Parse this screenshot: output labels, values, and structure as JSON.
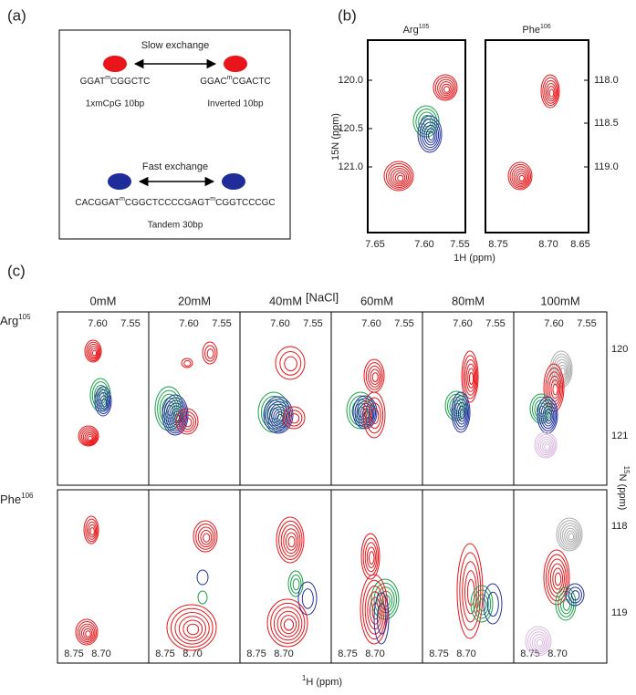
{
  "panel_a": {
    "label": "(a)",
    "slow_exchange": "Slow exchange",
    "fast_exchange": "Fast exchange",
    "seq_1": [
      "GGAT",
      "m",
      "CGGCTC"
    ],
    "seq_2": [
      "GGAC",
      "m",
      "CGACTC"
    ],
    "seq_3": [
      "CACGGAT",
      "m",
      "CGGCTCCCCGAGT",
      "m",
      "CGGTCCCGC"
    ],
    "name_1": "1xmCpG 10bp",
    "name_2": "Inverted 10bp",
    "name_3": "Tandem 30bp"
  },
  "panel_b": {
    "label": "(b)",
    "title_left": [
      "Arg",
      "105"
    ],
    "title_right": [
      "Phe",
      "106"
    ],
    "ylabel": "15N (ppm)",
    "xlabel": "1H (ppm)",
    "left_yticks": [
      "120.0",
      "120.5",
      "121.0"
    ],
    "right_yticks": [
      "118.0",
      "118.5",
      "119.0"
    ],
    "left_xticks": [
      "7.65",
      "7.60",
      "7.55"
    ],
    "right_xticks": [
      "8.75",
      "8.70",
      "8.65"
    ]
  },
  "panel_c": {
    "label": "(c)",
    "header": "[NaCl]",
    "columns": [
      "0mM",
      "20mM",
      "40mM",
      "60mM",
      "80mM",
      "100mM"
    ],
    "row_1": [
      "Arg",
      "105"
    ],
    "row_2": [
      "Phe",
      "106"
    ],
    "row_1_xticks": [
      "7.60",
      "7.55"
    ],
    "row_2_xticks": [
      "8.75",
      "8.70"
    ],
    "row_1_yticks": [
      "120",
      "121"
    ],
    "row_2_yticks": [
      "118",
      "119"
    ],
    "ylabel": [
      "15",
      "N (ppm)"
    ],
    "xlabel": [
      "1",
      "H (ppm)"
    ]
  }
}
